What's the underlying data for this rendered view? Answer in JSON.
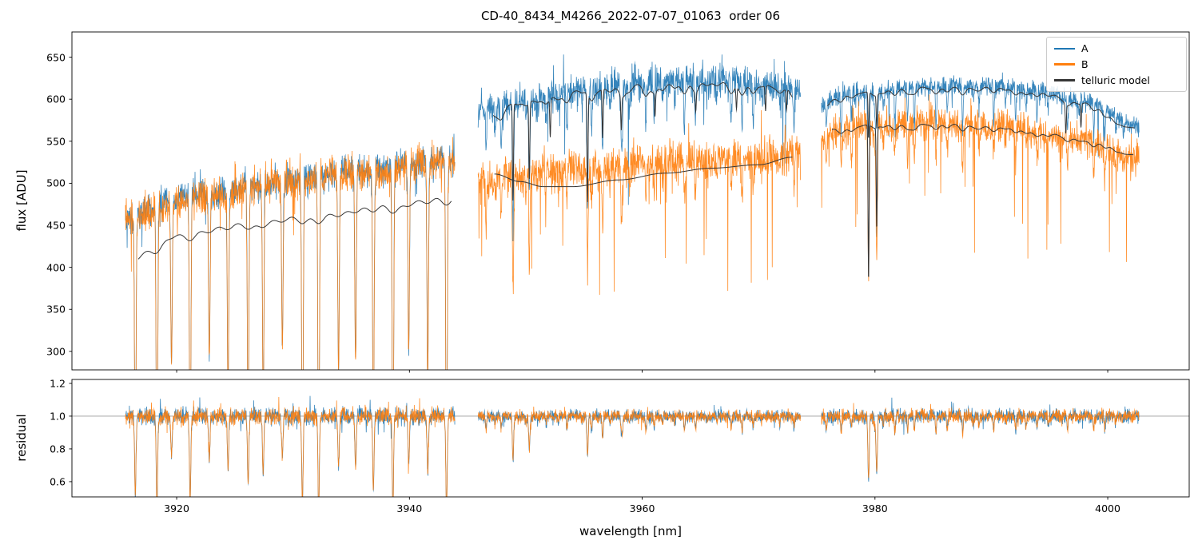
{
  "chart_data": {
    "type": "line",
    "title": "CD-40_8434_M4266_2022-07-07_01063  order 06",
    "xlabel": "wavelength [nm]",
    "ylabel_flux": "flux [ADU]",
    "ylabel_residual": "residual",
    "background": "#ffffff",
    "spine_color": "#000000",
    "legend_position": "upper right",
    "grid": false,
    "xlim": [
      3911,
      4007
    ],
    "xticks": {
      "values": [
        3920,
        3940,
        3960,
        3980,
        4000
      ],
      "labels": [
        "3920",
        "3940",
        "3960",
        "3980",
        "4000"
      ]
    },
    "flux_panel": {
      "ylim": [
        278,
        680
      ],
      "tick_values": [
        300,
        350,
        400,
        450,
        500,
        550,
        600,
        650
      ],
      "tick_labels": [
        "300",
        "350",
        "400",
        "450",
        "500",
        "550",
        "600",
        "650"
      ]
    },
    "residual_panel": {
      "ylim": [
        0.507,
        1.224
      ],
      "tick_values": [
        0.6,
        0.8,
        1.0,
        1.2
      ],
      "tick_labels": [
        "0.6",
        "0.8",
        "1.0",
        "1.2"
      ],
      "refline": 1.0,
      "refline_color": "#9a9a9a"
    },
    "series": [
      {
        "name": "A",
        "color": "#1f77b4"
      },
      {
        "name": "B",
        "color": "#ff7f0e"
      },
      {
        "name": "telluric model",
        "color": "#363636"
      }
    ],
    "segments": [
      {
        "x_range": [
          3915.6,
          3943.9
        ],
        "A": {
          "base": [
            [
              3915.6,
              462
            ],
            [
              3922,
              486
            ],
            [
              3929,
              502
            ],
            [
              3936,
              515
            ],
            [
              3943.9,
              528
            ]
          ],
          "noise": 27,
          "dip_prob": 0
        },
        "B": {
          "base": [
            [
              3915.6,
              458
            ],
            [
              3922,
              483
            ],
            [
              3929,
              500
            ],
            [
              3936,
              513
            ],
            [
              3943.9,
              526
            ]
          ],
          "noise": 31,
          "dip_prob": 0
        },
        "lines": {
          "start": 3916.6,
          "spacing": 1.56,
          "count": 18,
          "jitter": 0.18,
          "width": 0.09,
          "depth_min": 0.35,
          "depth_max": 0.8
        },
        "deep_lines": [],
        "models": [
          {
            "base": [
              [
                3916.7,
                419
              ],
              [
                3920,
                442
              ],
              [
                3926,
                455
              ],
              [
                3932,
                465
              ],
              [
                3938,
                477
              ],
              [
                3943.6,
                487
              ]
            ],
            "scallop": 13,
            "deep": []
          }
        ],
        "residual": {
          "noise": 0.075,
          "line_scale": 0.6
        }
      },
      {
        "x_range": [
          3945.9,
          3973.6
        ],
        "A": {
          "base": [
            [
              3945.9,
              585
            ],
            [
              3950,
              600
            ],
            [
              3956,
              613
            ],
            [
              3962,
              621
            ],
            [
              3968,
              621
            ],
            [
              3973.6,
              611
            ]
          ],
          "noise": 29,
          "dip_prob": 0.004
        },
        "B": {
          "base": [
            [
              3945.9,
              503
            ],
            [
              3950,
              511
            ],
            [
              3956,
              519
            ],
            [
              3962,
              527
            ],
            [
              3968,
              529
            ],
            [
              3973.6,
              534
            ]
          ],
          "noise": 35,
          "dip_prob": 0.012
        },
        "lines": {
          "start": 3946.3,
          "spacing": 0.92,
          "count": 30,
          "jitter": 0.3,
          "width": 0.07,
          "depth_min": 0.01,
          "depth_max": 0.1
        },
        "deep_lines": [
          {
            "x": 3948.9,
            "depth": 0.27
          },
          {
            "x": 3950.3,
            "depth": 0.2
          },
          {
            "x": 3955.3,
            "depth": 0.24
          },
          {
            "x": 3956.6,
            "depth": 0.13
          },
          {
            "x": 3958.2,
            "depth": 0.09
          }
        ],
        "models": [
          {
            "base": [
              [
                3947.2,
                588
              ],
              [
                3950,
                599
              ],
              [
                3956,
                613
              ],
              [
                3961,
                619
              ],
              [
                3966,
                621
              ],
              [
                3970,
                618
              ],
              [
                3972.9,
                612
              ]
            ],
            "scallop": 16,
            "deep": [
              {
                "x": 3948.9,
                "d": 115
              },
              {
                "x": 3950.3,
                "d": 90
              },
              {
                "x": 3952.1,
                "d": 45
              },
              {
                "x": 3955.3,
                "d": 128
              },
              {
                "x": 3956.6,
                "d": 58
              },
              {
                "x": 3958.2,
                "d": 40
              },
              {
                "x": 3961.1,
                "d": 28
              },
              {
                "x": 3964.6,
                "d": 22
              },
              {
                "x": 3968.1,
                "d": 26
              },
              {
                "x": 3970.6,
                "d": 30
              },
              {
                "x": 3972.4,
                "d": 24
              }
            ]
          },
          {
            "base": [
              [
                3947.3,
                511
              ],
              [
                3949.5,
                502
              ],
              [
                3951.5,
                496
              ],
              [
                3954,
                496
              ],
              [
                3958,
                504
              ],
              [
                3962,
                512
              ],
              [
                3966,
                518
              ],
              [
                3970,
                522
              ],
              [
                3972.9,
                531
              ]
            ],
            "scallop": 0,
            "deep": []
          }
        ],
        "residual": {
          "noise": 0.05,
          "line_scale": 1.0
        }
      },
      {
        "x_range": [
          3975.4,
          4002.7
        ],
        "A": {
          "base": [
            [
              3975.4,
              597
            ],
            [
              3978,
              608
            ],
            [
              3984,
              615
            ],
            [
              3990,
              616
            ],
            [
              3994,
              610
            ],
            [
              3998,
              597
            ],
            [
              4002.7,
              568
            ]
          ],
          "noise": 17,
          "dip_prob": 0.004
        },
        "B": {
          "base": [
            [
              3975.4,
              558
            ],
            [
              3980,
              569
            ],
            [
              3986,
              572
            ],
            [
              3991,
              568
            ],
            [
              3996,
              556
            ],
            [
              4002.7,
              531
            ]
          ],
          "noise": 29,
          "dip_prob": 0.014
        },
        "lines": {
          "start": 3975.9,
          "spacing": 0.95,
          "count": 28,
          "jitter": 0.3,
          "width": 0.07,
          "depth_min": 0.01,
          "depth_max": 0.09
        },
        "deep_lines": [
          {
            "x": 3979.45,
            "depth": 0.32
          },
          {
            "x": 3980.15,
            "depth": 0.28
          }
        ],
        "models": [
          {
            "base": [
              [
                3975.9,
                599
              ],
              [
                3978,
                608
              ],
              [
                3984,
                615
              ],
              [
                3990,
                615
              ],
              [
                3994,
                609
              ],
              [
                3998,
                596
              ],
              [
                4002.3,
                566
              ]
            ],
            "scallop": 10,
            "deep": [
              {
                "x": 3979.45,
                "d": 55
              },
              {
                "x": 3980.15,
                "d": 40
              },
              {
                "x": 3996.4,
                "d": 34
              },
              {
                "x": 3997.7,
                "d": 28
              }
            ]
          },
          {
            "base": [
              [
                3976.3,
                565
              ],
              [
                3980,
                570
              ],
              [
                3986,
                571
              ],
              [
                3991,
                567
              ],
              [
                3995,
                559
              ],
              [
                3999,
                549
              ],
              [
                4002.2,
                534
              ]
            ],
            "scallop": 8,
            "deep": [
              {
                "x": 3979.45,
                "d": 185
              },
              {
                "x": 3980.15,
                "d": 120
              }
            ]
          }
        ],
        "residual": {
          "noise": 0.06,
          "line_scale": 1.3
        }
      }
    ]
  }
}
